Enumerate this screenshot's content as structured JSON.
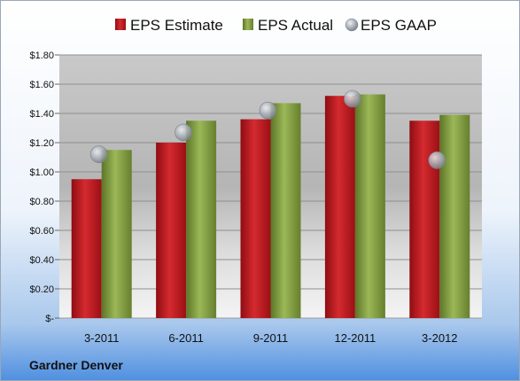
{
  "chart_data": {
    "type": "bar",
    "categories": [
      "3-2011",
      "6-2011",
      "9-2011",
      "12-2011",
      "3-2012"
    ],
    "series": [
      {
        "name": "EPS Estimate",
        "type": "bar",
        "color": "#c0161d",
        "values": [
          0.95,
          1.2,
          1.36,
          1.52,
          1.35
        ]
      },
      {
        "name": "EPS Actual",
        "type": "bar",
        "color": "#7e9a3a",
        "values": [
          1.15,
          1.35,
          1.47,
          1.53,
          1.39
        ]
      },
      {
        "name": "EPS GAAP",
        "type": "scatter",
        "color": "#a9aeb5",
        "values": [
          1.12,
          1.27,
          1.42,
          1.5,
          1.08
        ]
      }
    ],
    "y_ticks": [
      "$-",
      "$0.20",
      "$0.40",
      "$0.60",
      "$0.80",
      "$1.00",
      "$1.20",
      "$1.40",
      "$1.60",
      "$1.80"
    ],
    "ylim": [
      0,
      1.8
    ],
    "grid": true,
    "legend_position": "top",
    "company": "Gardner Denver"
  }
}
